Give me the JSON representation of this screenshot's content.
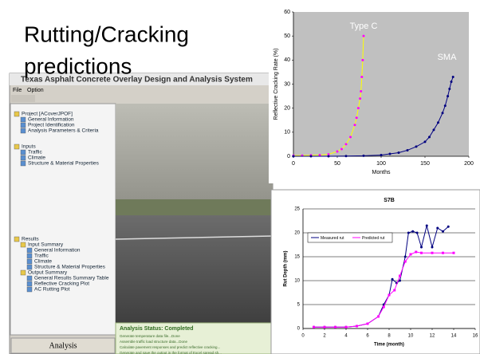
{
  "title": [
    "Rutting/Cracking",
    "predictions"
  ],
  "app": {
    "window_title": "Texas Asphalt Concrete Overlay Design and Analysis System",
    "menu": [
      "File",
      "Option"
    ],
    "tree": [
      {
        "label": "Project [ACoverJPOF]",
        "items": [
          "General Information",
          "Project Identification",
          "Analysis Parameters & Criteria"
        ]
      },
      {
        "label": "Inputs",
        "items": [
          "Traffic",
          "Climate",
          "Structure & Material Properties"
        ]
      },
      {
        "label": "Results",
        "groups": [
          {
            "label": "Input Summary",
            "items": [
              "General Information",
              "Traffic",
              "Climate",
              "Structure & Material Properties"
            ]
          },
          {
            "label": "Output Summary",
            "items": [
              "General Results Summary Table",
              "Reflective Cracking Plot",
              "AC Rutting Plot"
            ]
          }
        ]
      }
    ],
    "button": "Analysis",
    "status_title": "Analysis Status: Completed",
    "status_lines": [
      "Generate temperature data file...Done",
      "Assemble traffic load structure data...Done",
      "Calculate pavement responses and predict reflective cracking...",
      "Generate and save the output in the format of Excel spread sh..."
    ]
  },
  "chart_data": [
    {
      "type": "line",
      "y_label": "Reflective Cracking Rate (%)",
      "x_label": "Months",
      "xlim": [
        0,
        200
      ],
      "xticks": [
        0,
        50,
        100,
        150,
        200
      ],
      "ylim": [
        0,
        60
      ],
      "yticks": [
        0,
        10,
        20,
        30,
        40,
        50,
        60
      ],
      "background": "#c0c0c0",
      "series": [
        {
          "name": "Type C",
          "color": "#ffff00",
          "marker_color": "#ff00ff",
          "x": [
            0,
            10,
            20,
            30,
            40,
            50,
            55,
            60,
            65,
            70,
            72,
            74,
            76,
            77,
            78,
            79,
            80
          ],
          "values": [
            0.3,
            0.3,
            0.4,
            0.5,
            0.8,
            2,
            3,
            5,
            8,
            13,
            16,
            20,
            24,
            27,
            33,
            40,
            50
          ]
        },
        {
          "name": "SMA",
          "color": "#000080",
          "marker_color": "#000080",
          "x": [
            0,
            20,
            40,
            60,
            80,
            100,
            110,
            120,
            130,
            140,
            150,
            155,
            160,
            165,
            170,
            173,
            176,
            178,
            180,
            182
          ],
          "values": [
            0,
            0,
            0,
            0.1,
            0.2,
            0.5,
            1,
            1.5,
            2.5,
            4,
            6,
            8,
            11,
            14,
            18,
            21,
            25,
            28,
            31,
            33
          ]
        }
      ]
    },
    {
      "type": "line",
      "title": "S7B",
      "y_label": "Rut Depth (mm)",
      "x_label": "Time (month)",
      "xlim": [
        0,
        16
      ],
      "xticks": [
        0,
        2,
        4,
        6,
        8,
        10,
        12,
        14,
        16
      ],
      "ylim": [
        0,
        25
      ],
      "yticks": [
        0,
        5,
        10,
        15,
        20,
        25
      ],
      "grid": true,
      "legend": "left",
      "series": [
        {
          "name": "Measured rut",
          "color": "#000080",
          "x": [
            1,
            2,
            3,
            4,
            5,
            6,
            7,
            7.5,
            8,
            8.3,
            8.7,
            9,
            9.5,
            9.8,
            10.2,
            10.6,
            11,
            11.5,
            12,
            12.5,
            13,
            13.5
          ],
          "values": [
            0.3,
            0.3,
            0.3,
            0.3,
            0.5,
            1,
            2.5,
            5,
            7,
            10.3,
            9.5,
            10,
            15,
            20,
            20.3,
            20,
            17,
            21.5,
            17,
            21,
            20.3,
            21.3
          ]
        },
        {
          "name": "Predicted rut",
          "color": "#ff00ff",
          "x": [
            1,
            2,
            3,
            4,
            5,
            6,
            7,
            7.5,
            8,
            8.5,
            9,
            9.5,
            10,
            10.5,
            11,
            12,
            13,
            14
          ],
          "values": [
            0.3,
            0.3,
            0.3,
            0.3,
            0.5,
            1,
            2.5,
            4.5,
            7,
            8,
            11,
            14,
            15.5,
            16,
            15.8,
            15.8,
            15.8,
            15.8
          ]
        }
      ]
    }
  ]
}
